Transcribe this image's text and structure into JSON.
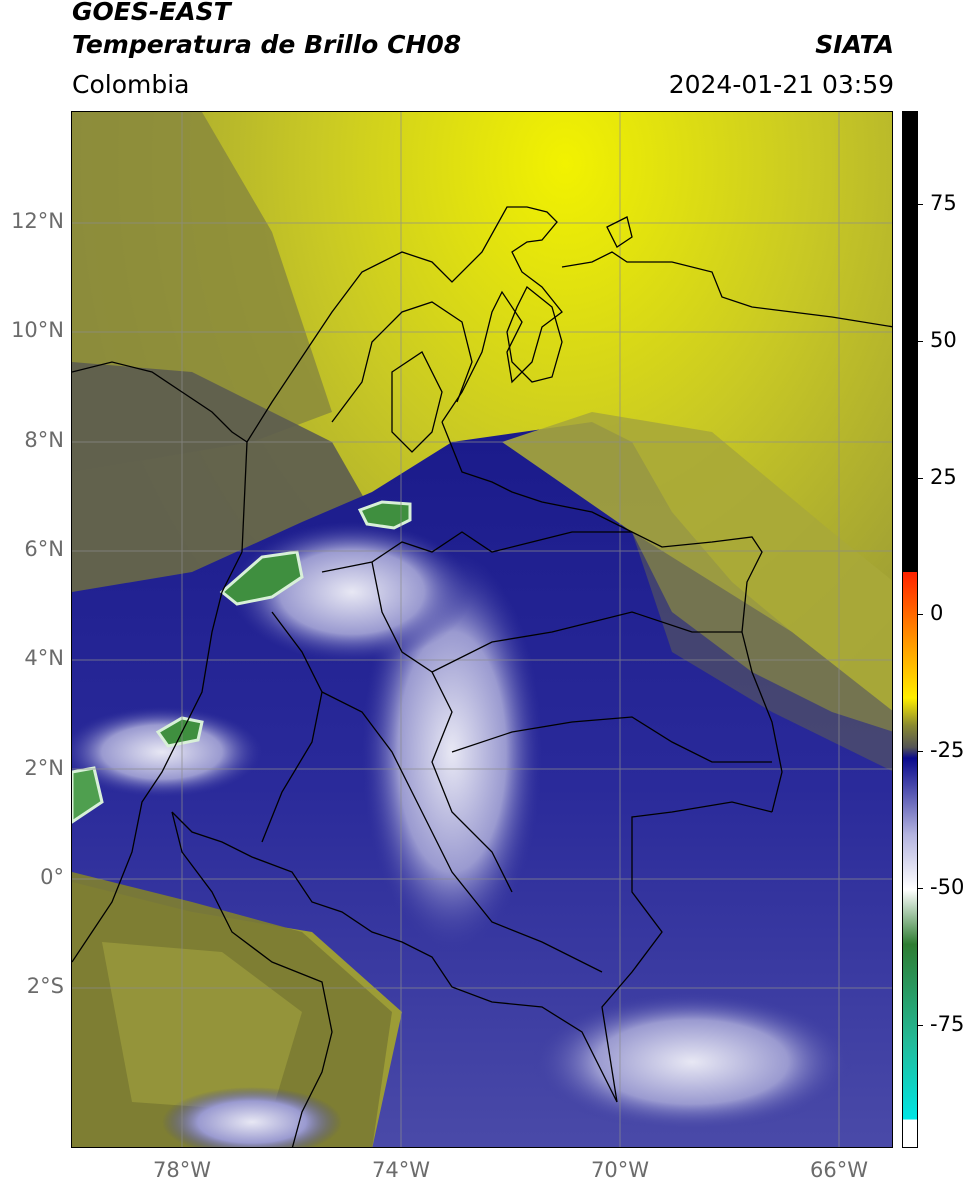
{
  "header": {
    "satellite": "GOES-EAST",
    "product": "Temperatura de Brillo CH08",
    "region": "Colombia",
    "brand": "SIATA",
    "datetime": "2024-01-21 03:59"
  },
  "map": {
    "lat_ticks": [
      "12°N",
      "10°N",
      "8°N",
      "6°N",
      "4°N",
      "2°N",
      "0°",
      "2°S"
    ],
    "lon_ticks": [
      "78°W",
      "74°W",
      "70°W",
      "66°W"
    ],
    "extent": {
      "lon_min": -80.0,
      "lon_max": -65.0,
      "lat_min": -5.0,
      "lat_max": 14.0
    }
  },
  "colorbar": {
    "labels": [
      "75",
      "50",
      "25",
      "0",
      "-25",
      "-50",
      "-75"
    ],
    "range": [
      -97,
      92
    ],
    "colors": {
      "black": "#000000",
      "red": "#ff2200",
      "orange": "#ff9900",
      "yellow": "#ffee00",
      "olive": "#8a8a30",
      "gray": "#555555",
      "navy": "#0a0a8c",
      "lavender": "#b4b4e0",
      "white": "#ffffff",
      "green": "#2e7d32",
      "teal": "#22bb99",
      "cyan": "#00e5e5"
    }
  }
}
